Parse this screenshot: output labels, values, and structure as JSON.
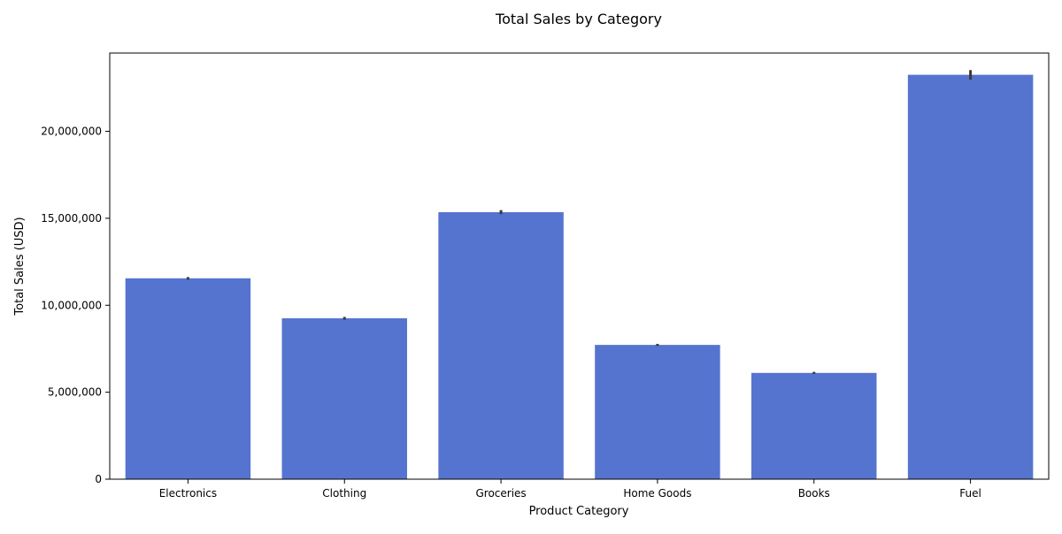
{
  "chart_data": {
    "type": "bar",
    "title": "Total Sales by Category",
    "xlabel": "Product Category",
    "ylabel": "Total Sales (USD)",
    "categories": [
      "Electronics",
      "Clothing",
      "Groceries",
      "Home Goods",
      "Books",
      "Fuel"
    ],
    "values": [
      11550000,
      9250000,
      15350000,
      7720000,
      6110000,
      23250000
    ],
    "error_low": [
      11470000,
      9170000,
      15240000,
      7660000,
      6050000,
      22970000
    ],
    "error_high": [
      11620000,
      9330000,
      15470000,
      7780000,
      6170000,
      23520000
    ],
    "ylim": [
      0,
      24500000
    ],
    "yticks": [
      0,
      5000000,
      10000000,
      15000000,
      20000000
    ],
    "ytick_labels": [
      "0",
      "5,000,000",
      "10,000,000",
      "15,000,000",
      "20,000,000"
    ],
    "grid": false,
    "colors": {
      "bar": "#5574cf",
      "error_bar": "#3a3a3a",
      "axis": "#000000"
    }
  }
}
